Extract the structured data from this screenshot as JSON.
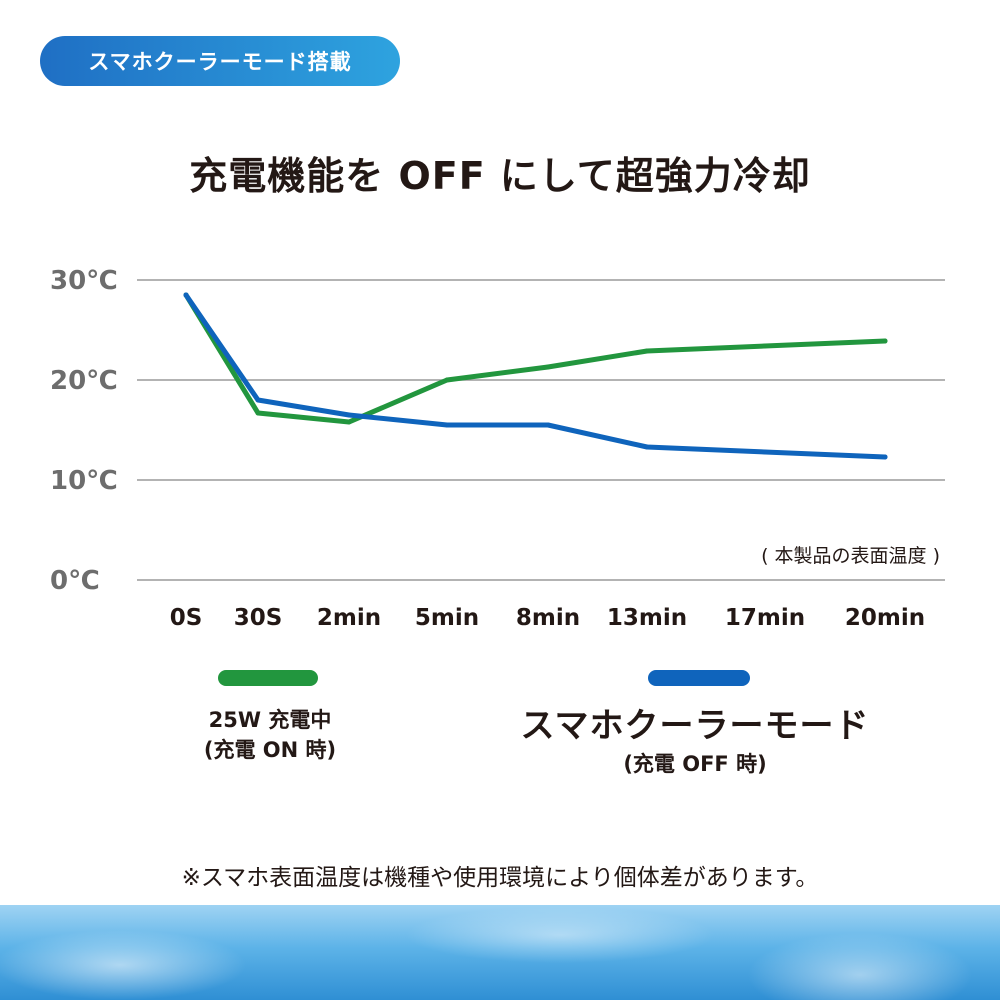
{
  "badge": {
    "label": "スマホクーラーモード搭載"
  },
  "title": "充電機能を OFF にして超強力冷却",
  "chart_data": {
    "type": "line",
    "categories": [
      "0S",
      "30S",
      "2min",
      "5min",
      "8min",
      "13min",
      "17min",
      "20min"
    ],
    "y_ticks": [
      {
        "value": 30,
        "label": "30℃"
      },
      {
        "value": 20,
        "label": "20℃"
      },
      {
        "value": 10,
        "label": "10℃"
      },
      {
        "value": 0,
        "label": "0℃"
      }
    ],
    "ylim": [
      0,
      30
    ],
    "grid": true,
    "annotation": "( 本製品の表面温度 )",
    "series": [
      {
        "key": "charging",
        "color": "#22963e",
        "values": [
          28.5,
          16.7,
          15.8,
          20.0,
          21.3,
          22.9,
          23.4,
          23.9
        ]
      },
      {
        "key": "cooler",
        "color": "#0f64bc",
        "values": [
          28.5,
          18.0,
          16.5,
          15.5,
          15.5,
          13.3,
          12.8,
          12.3
        ]
      }
    ]
  },
  "legend": {
    "green_line1": "25W 充電中",
    "green_line2": "(充電 ON 時)",
    "blue_title": "スマホクーラーモード",
    "blue_sub": "(充電 OFF 時)"
  },
  "footnote": "※スマホ表面温度は機種や使用環境により個体差があります。"
}
